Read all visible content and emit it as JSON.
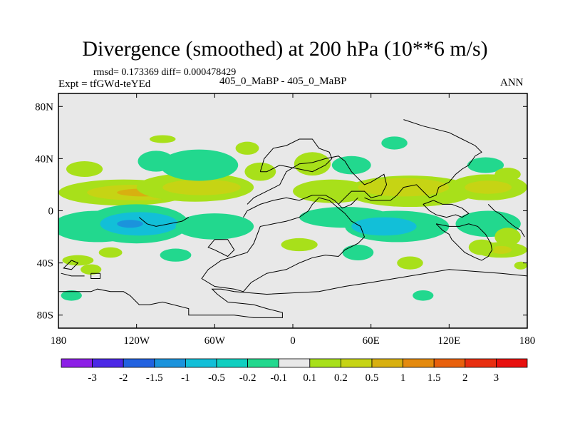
{
  "title": "Divergence (smoothed) at 200 hPa (10**6 m/s)",
  "stats_text": "rmsd= 0.173369 diff= 0.000478429",
  "expt_label": "Expt = tfGWd-teYEd",
  "case_label": "405_0_MaBP - 405_0_MaBP",
  "season_label": "ANN",
  "chart_data": {
    "type": "contour-map",
    "title": "Divergence (smoothed) at 200 hPa (10**6 m/s)",
    "xlim": [
      -180,
      180
    ],
    "ylim": [
      -90,
      90
    ],
    "x_ticks": [
      {
        "value": -180,
        "label": "180"
      },
      {
        "value": -120,
        "label": "120W"
      },
      {
        "value": -60,
        "label": "60W"
      },
      {
        "value": 0,
        "label": "0"
      },
      {
        "value": 60,
        "label": "60E"
      },
      {
        "value": 120,
        "label": "120E"
      },
      {
        "value": 180,
        "label": "180"
      }
    ],
    "y_ticks": [
      {
        "value": 80,
        "label": "80N"
      },
      {
        "value": 40,
        "label": "40N"
      },
      {
        "value": 0,
        "label": "0"
      },
      {
        "value": -40,
        "label": "40S"
      },
      {
        "value": -80,
        "label": "80S"
      }
    ],
    "colorbar": {
      "labels": [
        "-3",
        "-2",
        "-1.5",
        "-1",
        "-0.5",
        "-0.2",
        "-0.1",
        "0.1",
        "0.2",
        "0.5",
        "1",
        "1.5",
        "2",
        "3"
      ],
      "colors": [
        "#8c1ee6",
        "#4b28e6",
        "#2262e0",
        "#1b93dc",
        "#12bfd8",
        "#10cfc0",
        "#22d88e",
        "#e8e8e8",
        "#a8e01a",
        "#c6d414",
        "#d8b010",
        "#e48a0e",
        "#e8600c",
        "#e82e10",
        "#e8100e"
      ]
    },
    "regions": [
      {
        "lon": -130,
        "lat": 14,
        "rlon": 50,
        "rlat": 10,
        "color": "#a8e01a"
      },
      {
        "lon": -120,
        "lat": 14,
        "rlon": 38,
        "rlat": 6,
        "color": "#c6d414"
      },
      {
        "lon": -115,
        "lat": 14,
        "rlon": 20,
        "rlat": 3,
        "color": "#d8b010"
      },
      {
        "lon": -75,
        "lat": 18,
        "rlon": 45,
        "rlat": 11,
        "color": "#a8e01a"
      },
      {
        "lon": -70,
        "lat": 18,
        "rlon": 30,
        "rlat": 6,
        "color": "#c6d414"
      },
      {
        "lon": -70,
        "lat": 35,
        "rlon": 25,
        "rlat": 9,
        "color": "#12bfd8"
      },
      {
        "lon": -72,
        "lat": 35,
        "rlon": 30,
        "rlat": 12,
        "color": "#22d88e"
      },
      {
        "lon": -160,
        "lat": 32,
        "rlon": 14,
        "rlat": 6,
        "color": "#a8e01a"
      },
      {
        "lon": -105,
        "lat": 38,
        "rlon": 14,
        "rlat": 8,
        "color": "#22d88e"
      },
      {
        "lon": -100,
        "lat": 55,
        "rlon": 10,
        "rlat": 3,
        "color": "#a8e01a"
      },
      {
        "lon": -35,
        "lat": 48,
        "rlon": 9,
        "rlat": 5,
        "color": "#a8e01a"
      },
      {
        "lon": -25,
        "lat": 30,
        "rlon": 12,
        "rlat": 7,
        "color": "#a8e01a"
      },
      {
        "lon": 15,
        "lat": 36,
        "rlon": 14,
        "rlat": 9,
        "color": "#a8e01a"
      },
      {
        "lon": 45,
        "lat": 35,
        "rlon": 15,
        "rlat": 7,
        "color": "#22d88e"
      },
      {
        "lon": 30,
        "lat": 15,
        "rlon": 30,
        "rlat": 9,
        "color": "#a8e01a"
      },
      {
        "lon": 90,
        "lat": 15,
        "rlon": 50,
        "rlat": 12,
        "color": "#a8e01a"
      },
      {
        "lon": 85,
        "lat": 18,
        "rlon": 35,
        "rlat": 7,
        "color": "#c6d414"
      },
      {
        "lon": 150,
        "lat": 18,
        "rlon": 30,
        "rlat": 10,
        "color": "#a8e01a"
      },
      {
        "lon": 150,
        "lat": 18,
        "rlon": 18,
        "rlat": 5,
        "color": "#c6d414"
      },
      {
        "lon": 148,
        "lat": 35,
        "rlon": 14,
        "rlat": 6,
        "color": "#22d88e"
      },
      {
        "lon": 165,
        "lat": 28,
        "rlon": 10,
        "rlat": 5,
        "color": "#a8e01a"
      },
      {
        "lon": 78,
        "lat": 52,
        "rlon": 10,
        "rlat": 5,
        "color": "#22d88e"
      },
      {
        "lon": -150,
        "lat": -12,
        "rlon": 35,
        "rlat": 12,
        "color": "#22d88e"
      },
      {
        "lon": -120,
        "lat": -10,
        "rlon": 40,
        "rlat": 15,
        "color": "#22d88e"
      },
      {
        "lon": -118,
        "lat": -10,
        "rlon": 30,
        "rlat": 9,
        "color": "#12bfd8"
      },
      {
        "lon": -125,
        "lat": -10,
        "rlon": 10,
        "rlat": 3,
        "color": "#1b93dc"
      },
      {
        "lon": -60,
        "lat": -12,
        "rlon": 30,
        "rlat": 10,
        "color": "#22d88e"
      },
      {
        "lon": 40,
        "lat": -5,
        "rlon": 35,
        "rlat": 8,
        "color": "#22d88e"
      },
      {
        "lon": 80,
        "lat": -12,
        "rlon": 40,
        "rlat": 12,
        "color": "#22d88e"
      },
      {
        "lon": 70,
        "lat": -12,
        "rlon": 25,
        "rlat": 7,
        "color": "#12bfd8"
      },
      {
        "lon": 150,
        "lat": -10,
        "rlon": 25,
        "rlat": 10,
        "color": "#22d88e"
      },
      {
        "lon": 165,
        "lat": -20,
        "rlon": 10,
        "rlat": 7,
        "color": "#a8e01a"
      },
      {
        "lon": 160,
        "lat": -30,
        "rlon": 20,
        "rlat": 6,
        "color": "#a8e01a"
      },
      {
        "lon": 160,
        "lat": -30,
        "rlon": 8,
        "rlat": 3,
        "color": "#c6d414"
      },
      {
        "lon": 145,
        "lat": -28,
        "rlon": 10,
        "rlat": 6,
        "color": "#a8e01a"
      },
      {
        "lon": -165,
        "lat": -38,
        "rlon": 12,
        "rlat": 4,
        "color": "#a8e01a"
      },
      {
        "lon": -140,
        "lat": -32,
        "rlon": 9,
        "rlat": 4,
        "color": "#a8e01a"
      },
      {
        "lon": -90,
        "lat": -34,
        "rlon": 12,
        "rlat": 5,
        "color": "#22d88e"
      },
      {
        "lon": 5,
        "lat": -26,
        "rlon": 14,
        "rlat": 5,
        "color": "#a8e01a"
      },
      {
        "lon": 50,
        "lat": -32,
        "rlon": 12,
        "rlat": 6,
        "color": "#22d88e"
      },
      {
        "lon": 90,
        "lat": -40,
        "rlon": 10,
        "rlat": 5,
        "color": "#a8e01a"
      },
      {
        "lon": -170,
        "lat": -65,
        "rlon": 8,
        "rlat": 4,
        "color": "#22d88e"
      },
      {
        "lon": -155,
        "lat": -45,
        "rlon": 8,
        "rlat": 4,
        "color": "#a8e01a"
      },
      {
        "lon": 100,
        "lat": -65,
        "rlon": 8,
        "rlat": 4,
        "color": "#22d88e"
      },
      {
        "lon": 175,
        "lat": -42,
        "rlon": 5,
        "rlat": 3,
        "color": "#a8e01a"
      }
    ],
    "coastlines": [
      [
        [
          -170,
          -38
        ],
        [
          -165,
          -40
        ],
        [
          -170,
          -45
        ],
        [
          -176,
          -44
        ],
        [
          -170,
          -38
        ]
      ],
      [
        [
          -155,
          -48
        ],
        [
          -148,
          -48
        ],
        [
          -148,
          -52
        ],
        [
          -155,
          -52
        ],
        [
          -155,
          -48
        ]
      ],
      [
        [
          -180,
          -62
        ],
        [
          -155,
          -62
        ],
        [
          -150,
          -60
        ],
        [
          -140,
          -62
        ],
        [
          -130,
          -62
        ],
        [
          -125,
          -65
        ],
        [
          -118,
          -72
        ],
        [
          -110,
          -72
        ],
        [
          -100,
          -70
        ],
        [
          -80,
          -75
        ],
        [
          -80,
          -80
        ],
        [
          -45,
          -80
        ],
        [
          -30,
          -82
        ],
        [
          -8,
          -82
        ],
        [
          -8,
          -78
        ],
        [
          -20,
          -75
        ],
        [
          -30,
          -72
        ],
        [
          -50,
          -70
        ],
        [
          -58,
          -64
        ],
        [
          -62,
          -60
        ],
        [
          -55,
          -60
        ],
        [
          -45,
          -62
        ],
        [
          -20,
          -64
        ],
        [
          20,
          -62
        ],
        [
          40,
          -58
        ],
        [
          60,
          -55
        ],
        [
          90,
          -50
        ],
        [
          120,
          -45
        ],
        [
          160,
          -48
        ],
        [
          180,
          -50
        ]
      ],
      [
        [
          -38,
          -62
        ],
        [
          -32,
          -55
        ],
        [
          -20,
          -48
        ],
        [
          -5,
          -45
        ],
        [
          5,
          -40
        ],
        [
          15,
          -36
        ],
        [
          25,
          -34
        ],
        [
          35,
          -35
        ],
        [
          40,
          -30
        ],
        [
          50,
          -25
        ],
        [
          55,
          -20
        ],
        [
          52,
          -12
        ],
        [
          45,
          -8
        ],
        [
          40,
          -2
        ],
        [
          35,
          2
        ],
        [
          28,
          8
        ],
        [
          20,
          10
        ],
        [
          15,
          5
        ],
        [
          12,
          0
        ],
        [
          5,
          -5
        ],
        [
          -5,
          -8
        ],
        [
          -15,
          -10
        ],
        [
          -25,
          -12
        ],
        [
          -30,
          -25
        ],
        [
          -35,
          -32
        ],
        [
          -45,
          -35
        ],
        [
          -55,
          -38
        ],
        [
          -65,
          -45
        ],
        [
          -70,
          -52
        ],
        [
          -60,
          -58
        ],
        [
          -45,
          -60
        ],
        [
          -38,
          -62
        ]
      ],
      [
        [
          -35,
          5
        ],
        [
          -30,
          10
        ],
        [
          -20,
          15
        ],
        [
          -10,
          20
        ],
        [
          -5,
          30
        ],
        [
          5,
          36
        ],
        [
          15,
          37
        ],
        [
          25,
          40
        ],
        [
          35,
          42
        ],
        [
          40,
          38
        ],
        [
          45,
          30
        ],
        [
          50,
          25
        ],
        [
          55,
          20
        ],
        [
          60,
          22
        ],
        [
          65,
          25
        ],
        [
          70,
          28
        ],
        [
          72,
          20
        ],
        [
          68,
          12
        ],
        [
          60,
          10
        ],
        [
          55,
          15
        ],
        [
          45,
          15
        ],
        [
          40,
          10
        ],
        [
          35,
          5
        ]
      ],
      [
        [
          -25,
          30
        ],
        [
          -22,
          40
        ],
        [
          -15,
          48
        ],
        [
          -5,
          50
        ],
        [
          5,
          55
        ],
        [
          15,
          55
        ],
        [
          20,
          48
        ],
        [
          28,
          45
        ],
        [
          30,
          40
        ],
        [
          25,
          35
        ],
        [
          15,
          30
        ],
        [
          5,
          32
        ],
        [
          -10,
          35
        ],
        [
          -20,
          30
        ],
        [
          -25,
          30
        ]
      ],
      [
        [
          55,
          10
        ],
        [
          60,
          8
        ],
        [
          75,
          8
        ],
        [
          80,
          12
        ],
        [
          85,
          18
        ],
        [
          95,
          20
        ],
        [
          100,
          15
        ],
        [
          105,
          10
        ],
        [
          110,
          12
        ],
        [
          112,
          18
        ],
        [
          120,
          22
        ],
        [
          125,
          28
        ],
        [
          130,
          32
        ],
        [
          135,
          35
        ],
        [
          140,
          42
        ],
        [
          145,
          45
        ],
        [
          140,
          50
        ],
        [
          130,
          55
        ],
        [
          120,
          60
        ],
        [
          100,
          65
        ],
        [
          85,
          70
        ]
      ],
      [
        [
          -38,
          -5
        ],
        [
          -35,
          0
        ],
        [
          -25,
          5
        ],
        [
          -15,
          8
        ],
        [
          -5,
          10
        ],
        [
          5,
          8
        ],
        [
          15,
          12
        ],
        [
          25,
          12
        ],
        [
          32,
          8
        ],
        [
          38,
          2
        ],
        [
          45,
          5
        ],
        [
          50,
          10
        ]
      ],
      [
        [
          110,
          -10
        ],
        [
          115,
          -15
        ],
        [
          120,
          -18
        ],
        [
          122,
          -22
        ],
        [
          128,
          -28
        ],
        [
          132,
          -32
        ],
        [
          140,
          -36
        ],
        [
          145,
          -38
        ],
        [
          150,
          -35
        ],
        [
          153,
          -30
        ],
        [
          152,
          -25
        ],
        [
          148,
          -18
        ],
        [
          142,
          -12
        ],
        [
          135,
          -10
        ],
        [
          128,
          -12
        ],
        [
          120,
          -12
        ],
        [
          110,
          -10
        ]
      ],
      [
        [
          100,
          5
        ],
        [
          105,
          0
        ],
        [
          110,
          -3
        ],
        [
          118,
          -5
        ],
        [
          125,
          -3
        ],
        [
          130,
          -5
        ],
        [
          135,
          -2
        ],
        [
          130,
          2
        ],
        [
          122,
          5
        ],
        [
          115,
          5
        ],
        [
          108,
          8
        ],
        [
          100,
          5
        ]
      ],
      [
        [
          150,
          5
        ],
        [
          155,
          0
        ],
        [
          160,
          -3
        ],
        [
          165,
          -8
        ],
        [
          170,
          -12
        ],
        [
          175,
          -15
        ],
        [
          178,
          -20
        ]
      ],
      [
        [
          -118,
          -5
        ],
        [
          -112,
          -10
        ],
        [
          -105,
          -12
        ],
        [
          -95,
          -10
        ],
        [
          -85,
          -8
        ],
        [
          -80,
          -5
        ]
      ],
      [
        [
          -60,
          -30
        ],
        [
          -50,
          -35
        ],
        [
          -45,
          -30
        ],
        [
          -50,
          -22
        ],
        [
          -60,
          -22
        ],
        [
          -65,
          -28
        ],
        [
          -60,
          -30
        ]
      ],
      [
        [
          -178,
          -48
        ],
        [
          -170,
          -50
        ],
        [
          -160,
          -50
        ]
      ]
    ]
  }
}
